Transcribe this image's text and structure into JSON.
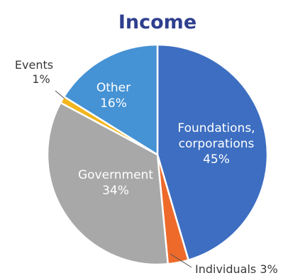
{
  "chart_data": {
    "type": "pie",
    "title": "Income",
    "start_angle_deg": 0,
    "direction": "clockwise",
    "slices": [
      {
        "label": "Foundations, corporations",
        "label_lines": [
          "Foundations,",
          "corporations"
        ],
        "value": 45,
        "display": "45%",
        "color": "#3d6ec1",
        "label_inside": true
      },
      {
        "label": "Individuals",
        "label_lines": [
          "Individuals 3%"
        ],
        "value": 3,
        "display": "",
        "color": "#ee6a2b",
        "label_inside": false
      },
      {
        "label": "Government",
        "label_lines": [
          "Government"
        ],
        "value": 34,
        "display": "34%",
        "color": "#a8a8a8",
        "label_inside": true
      },
      {
        "label": "Events",
        "label_lines": [
          "Events"
        ],
        "value": 1,
        "display": "1%",
        "color": "#f3b51c",
        "label_inside": false
      },
      {
        "label": "Other",
        "label_lines": [
          "Other"
        ],
        "value": 16,
        "display": "16%",
        "color": "#4592d4",
        "label_inside": true
      }
    ],
    "title_color": "#2f3f8e",
    "label_color_inside": "#ffffff",
    "label_color_outside": "#3a3a3a"
  }
}
